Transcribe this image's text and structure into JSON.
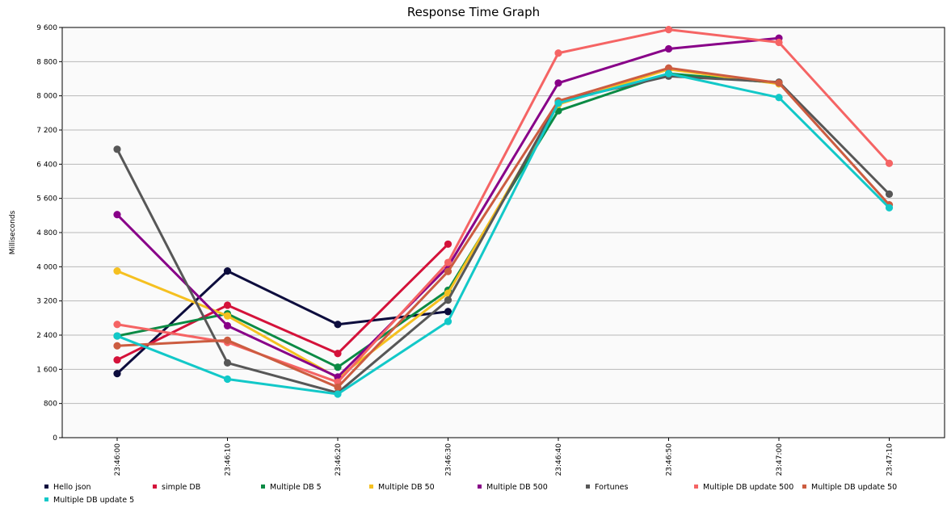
{
  "chart_data": {
    "type": "line",
    "title": "Response Time Graph",
    "xlabel": "",
    "ylabel": "Milliseconds",
    "categories": [
      "23:46:00",
      "23:46:10",
      "23:46:20",
      "23:46:30",
      "23:46:40",
      "23:46:50",
      "23:47:00",
      "23:47:10"
    ],
    "ylim": [
      0,
      9600
    ],
    "yticks": [
      0,
      800,
      1600,
      2400,
      3200,
      4000,
      4800,
      5600,
      6400,
      7200,
      8000,
      8800,
      9600
    ],
    "ytick_labels": [
      "0",
      "800",
      "1 600",
      "2 400",
      "3 200",
      "4 000",
      "4 800",
      "5 600",
      "6 400",
      "7 200",
      "8 000",
      "8 800",
      "9 600"
    ],
    "grid": "horizontal",
    "legend_position": "bottom",
    "series": [
      {
        "name": "Hello json",
        "color": "#0d0d3d",
        "values": [
          1500,
          3900,
          2650,
          2950,
          null,
          null,
          null,
          null
        ]
      },
      {
        "name": "simple DB",
        "color": "#d4123a",
        "values": [
          1820,
          3100,
          1970,
          4530,
          null,
          null,
          null,
          null
        ]
      },
      {
        "name": "Multiple DB 5",
        "color": "#0b8a44",
        "values": [
          2380,
          2900,
          1650,
          3450,
          7650,
          8520,
          8300,
          null
        ]
      },
      {
        "name": "Multiple DB 50",
        "color": "#f5c020",
        "values": [
          3900,
          2850,
          1400,
          3380,
          7800,
          8620,
          8280,
          null
        ]
      },
      {
        "name": "Multiple DB 500",
        "color": "#880088",
        "values": [
          5220,
          2620,
          1420,
          4000,
          8300,
          9100,
          9350,
          null
        ]
      },
      {
        "name": "Fortunes",
        "color": "#575757",
        "values": [
          6750,
          1750,
          1050,
          3220,
          7870,
          8460,
          8320,
          5700
        ]
      },
      {
        "name": "Multiple DB update 500",
        "color": "#f56464",
        "values": [
          2650,
          2230,
          1300,
          4100,
          9000,
          9550,
          9250,
          6420
        ]
      },
      {
        "name": "Multiple DB update 50",
        "color": "#cc5c40",
        "values": [
          2150,
          2280,
          1180,
          3890,
          7880,
          8650,
          8300,
          5450
        ]
      },
      {
        "name": "Multiple DB update 5",
        "color": "#12c8c8",
        "values": [
          2380,
          1370,
          1020,
          2720,
          7830,
          8520,
          7960,
          5380
        ]
      }
    ]
  }
}
